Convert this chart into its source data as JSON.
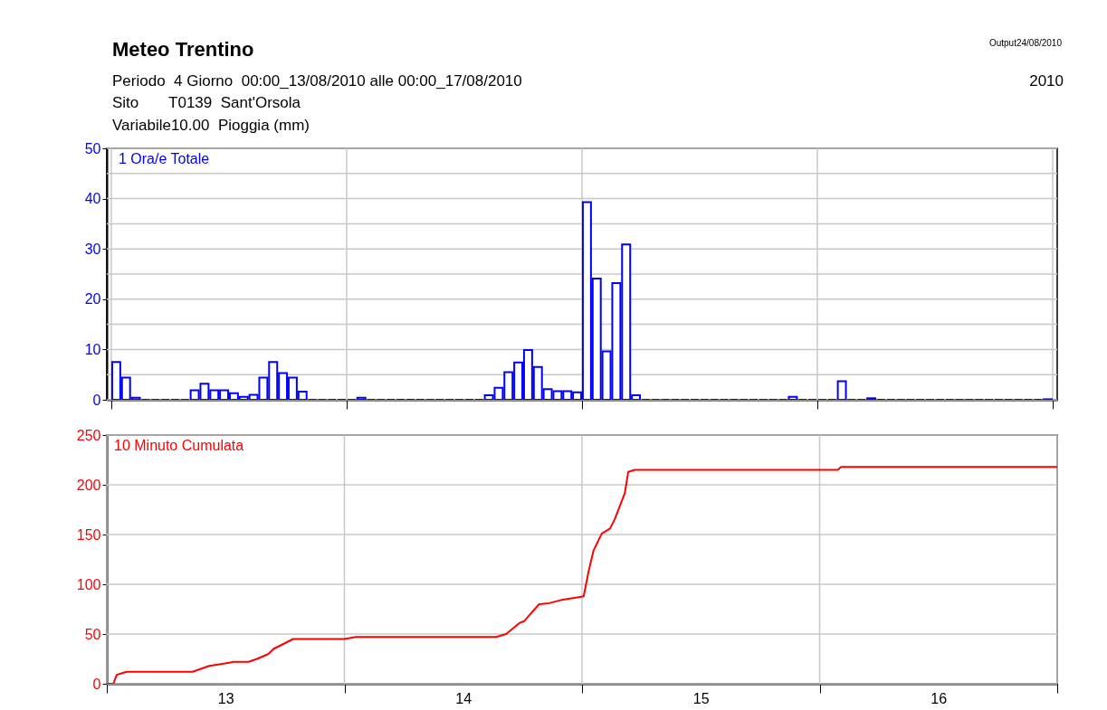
{
  "chart_data": [
    {
      "type": "bar",
      "title": "Meteo Trentino",
      "subtitle": "Periodo  4 Giorno  00:00_13/08/2010 alle 00:00_17/08/2010",
      "ylabel": "Variabile10.00  Pioggia (mm)",
      "annotations": [
        "Sito       T0139  Sant'Orsola",
        "2010",
        "Output24/08/2010"
      ],
      "x": [
        "2010-08-13T00:30",
        "2010-08-13T01:30",
        "2010-08-13T02:30",
        "2010-08-13T03:30",
        "2010-08-13T04:30",
        "2010-08-13T05:30",
        "2010-08-13T06:30",
        "2010-08-13T07:30",
        "2010-08-13T08:30",
        "2010-08-13T09:30",
        "2010-08-13T10:30",
        "2010-08-13T11:30",
        "2010-08-13T12:30",
        "2010-08-13T13:30",
        "2010-08-13T14:30",
        "2010-08-13T15:30",
        "2010-08-13T16:30",
        "2010-08-13T17:30",
        "2010-08-13T18:30",
        "2010-08-13T19:30",
        "2010-08-13T20:30",
        "2010-08-13T21:30",
        "2010-08-13T22:30",
        "2010-08-13T23:30",
        "2010-08-14T00:30",
        "2010-08-14T01:30",
        "2010-08-14T02:30",
        "2010-08-14T03:30",
        "2010-08-14T04:30",
        "2010-08-14T05:30",
        "2010-08-14T06:30",
        "2010-08-14T07:30",
        "2010-08-14T08:30",
        "2010-08-14T09:30",
        "2010-08-14T10:30",
        "2010-08-14T11:30",
        "2010-08-14T12:30",
        "2010-08-14T13:30",
        "2010-08-14T14:30",
        "2010-08-14T15:30",
        "2010-08-14T16:30",
        "2010-08-14T17:30",
        "2010-08-14T18:30",
        "2010-08-14T19:30",
        "2010-08-14T20:30",
        "2010-08-14T21:30",
        "2010-08-14T22:30",
        "2010-08-14T23:30",
        "2010-08-15T00:30",
        "2010-08-15T01:30",
        "2010-08-15T02:30",
        "2010-08-15T03:30",
        "2010-08-15T04:30",
        "2010-08-15T05:30",
        "2010-08-15T06:30",
        "2010-08-15T07:30",
        "2010-08-15T08:30",
        "2010-08-15T09:30",
        "2010-08-15T10:30",
        "2010-08-15T11:30",
        "2010-08-15T12:30",
        "2010-08-15T13:30",
        "2010-08-15T14:30",
        "2010-08-15T15:30",
        "2010-08-15T16:30",
        "2010-08-15T17:30",
        "2010-08-15T18:30",
        "2010-08-15T19:30",
        "2010-08-15T20:30",
        "2010-08-15T21:30",
        "2010-08-15T22:30",
        "2010-08-15T23:30",
        "2010-08-16T00:30",
        "2010-08-16T01:30",
        "2010-08-16T02:30",
        "2010-08-16T03:30",
        "2010-08-16T04:30",
        "2010-08-16T05:30",
        "2010-08-16T06:30",
        "2010-08-16T07:30",
        "2010-08-16T08:30",
        "2010-08-16T09:30",
        "2010-08-16T10:30",
        "2010-08-16T11:30",
        "2010-08-16T12:30",
        "2010-08-16T13:30",
        "2010-08-16T14:30",
        "2010-08-16T15:30",
        "2010-08-16T16:30",
        "2010-08-16T17:30",
        "2010-08-16T18:30",
        "2010-08-16T19:30",
        "2010-08-16T20:30",
        "2010-08-16T21:30",
        "2010-08-16T22:30",
        "2010-08-16T23:30"
      ],
      "series": [
        {
          "name": "1 Ora/e Totale",
          "color": "#0000ff",
          "values": [
            7.5,
            4.4,
            0.4,
            0,
            0,
            0,
            0,
            0,
            1.9,
            3.2,
            1.9,
            1.9,
            1.3,
            0.6,
            1.0,
            4.4,
            7.5,
            5.3,
            4.4,
            1.6,
            0,
            0,
            0,
            0,
            0,
            0.4,
            0,
            0,
            0,
            0,
            0,
            0,
            0,
            0,
            0,
            0,
            0,
            0,
            0.9,
            2.4,
            5.5,
            7.4,
            9.9,
            6.5,
            2.1,
            1.7,
            1.7,
            1.5,
            39.3,
            24.1,
            9.6,
            23.2,
            30.9,
            0.9,
            0,
            0,
            0,
            0,
            0,
            0,
            0,
            0,
            0,
            0,
            0,
            0,
            0,
            0,
            0,
            0.6,
            0,
            0,
            0,
            0,
            3.7,
            0,
            0,
            0.3,
            0,
            0,
            0,
            0,
            0,
            0,
            0,
            0,
            0,
            0,
            0,
            0,
            0,
            0,
            0,
            0,
            0,
            0.1
          ]
        }
      ],
      "xlim": [
        "2010-08-13T00:00",
        "2010-08-17T00:00"
      ],
      "xticks": [
        {
          "value": "2010-08-13T00:00",
          "label": null
        },
        {
          "value": "2010-08-14T00:00",
          "label": null
        },
        {
          "value": "2010-08-15T00:00",
          "label": null
        },
        {
          "value": "2010-08-16T00:00",
          "label": null
        },
        {
          "value": "2010-08-17T00:00",
          "label": null
        }
      ],
      "ylim": [
        0,
        50
      ],
      "yticks": [
        0,
        {
          "value": 5,
          "label": null
        },
        10,
        {
          "value": 15,
          "label": null
        },
        20,
        {
          "value": 25,
          "label": null
        },
        30,
        {
          "value": 35,
          "label": null
        },
        40,
        {
          "value": 45,
          "label": null
        },
        50
      ],
      "grid": true,
      "tick_labels": "y"
    },
    {
      "type": "line",
      "series": [
        {
          "name": "10 Minuto Cumulata",
          "color": "#ff0000",
          "x": [
            "2010-08-13T00:00",
            "2010-08-13T00:40",
            "2010-08-13T01:00",
            "2010-08-13T01:20",
            "2010-08-13T02:00",
            "2010-08-13T08:40",
            "2010-08-13T09:30",
            "2010-08-13T10:20",
            "2010-08-13T11:40",
            "2010-08-13T12:50",
            "2010-08-13T14:20",
            "2010-08-13T15:10",
            "2010-08-13T16:20",
            "2010-08-13T16:50",
            "2010-08-13T17:50",
            "2010-08-13T18:50",
            "2010-08-14T00:00",
            "2010-08-14T01:10",
            "2010-08-14T15:20",
            "2010-08-14T16:20",
            "2010-08-14T17:40",
            "2010-08-14T18:10",
            "2010-08-14T19:40",
            "2010-08-14T20:40",
            "2010-08-14T21:50",
            "2010-08-14T23:40",
            "2010-08-15T00:10",
            "2010-08-15T00:40",
            "2010-08-15T01:10",
            "2010-08-15T02:00",
            "2010-08-15T02:50",
            "2010-08-15T03:20",
            "2010-08-15T04:20",
            "2010-08-15T04:40",
            "2010-08-15T05:20",
            "2010-08-16T01:50",
            "2010-08-16T02:10",
            "2010-08-17T00:00"
          ],
          "values": [
            0,
            0,
            9,
            10,
            12,
            12,
            15,
            18,
            20,
            22,
            22,
            25,
            30,
            35,
            40,
            45,
            45,
            47,
            47,
            50,
            61,
            63,
            80,
            81,
            84,
            87,
            88,
            113,
            134,
            151,
            156,
            166,
            192,
            213,
            215,
            215,
            218,
            218
          ]
        }
      ],
      "xlim": [
        "2010-08-13T00:00",
        "2010-08-17T00:00"
      ],
      "xticks": [
        {
          "value": "2010-08-13T00:00",
          "label": null
        },
        {
          "value": "2010-08-13T12:00",
          "label": "13"
        },
        {
          "value": "2010-08-14T00:00",
          "label": null
        },
        {
          "value": "2010-08-14T12:00",
          "label": "14"
        },
        {
          "value": "2010-08-15T00:00",
          "label": null
        },
        {
          "value": "2010-08-15T12:00",
          "label": "15"
        },
        {
          "value": "2010-08-16T00:00",
          "label": null
        },
        {
          "value": "2010-08-16T12:00",
          "label": "16"
        },
        {
          "value": "2010-08-17T00:00",
          "label": null
        }
      ],
      "ylim": [
        0,
        250
      ],
      "yticks": [
        0,
        50,
        100,
        150,
        200,
        250
      ],
      "grid": true,
      "line_style": "solid"
    }
  ]
}
